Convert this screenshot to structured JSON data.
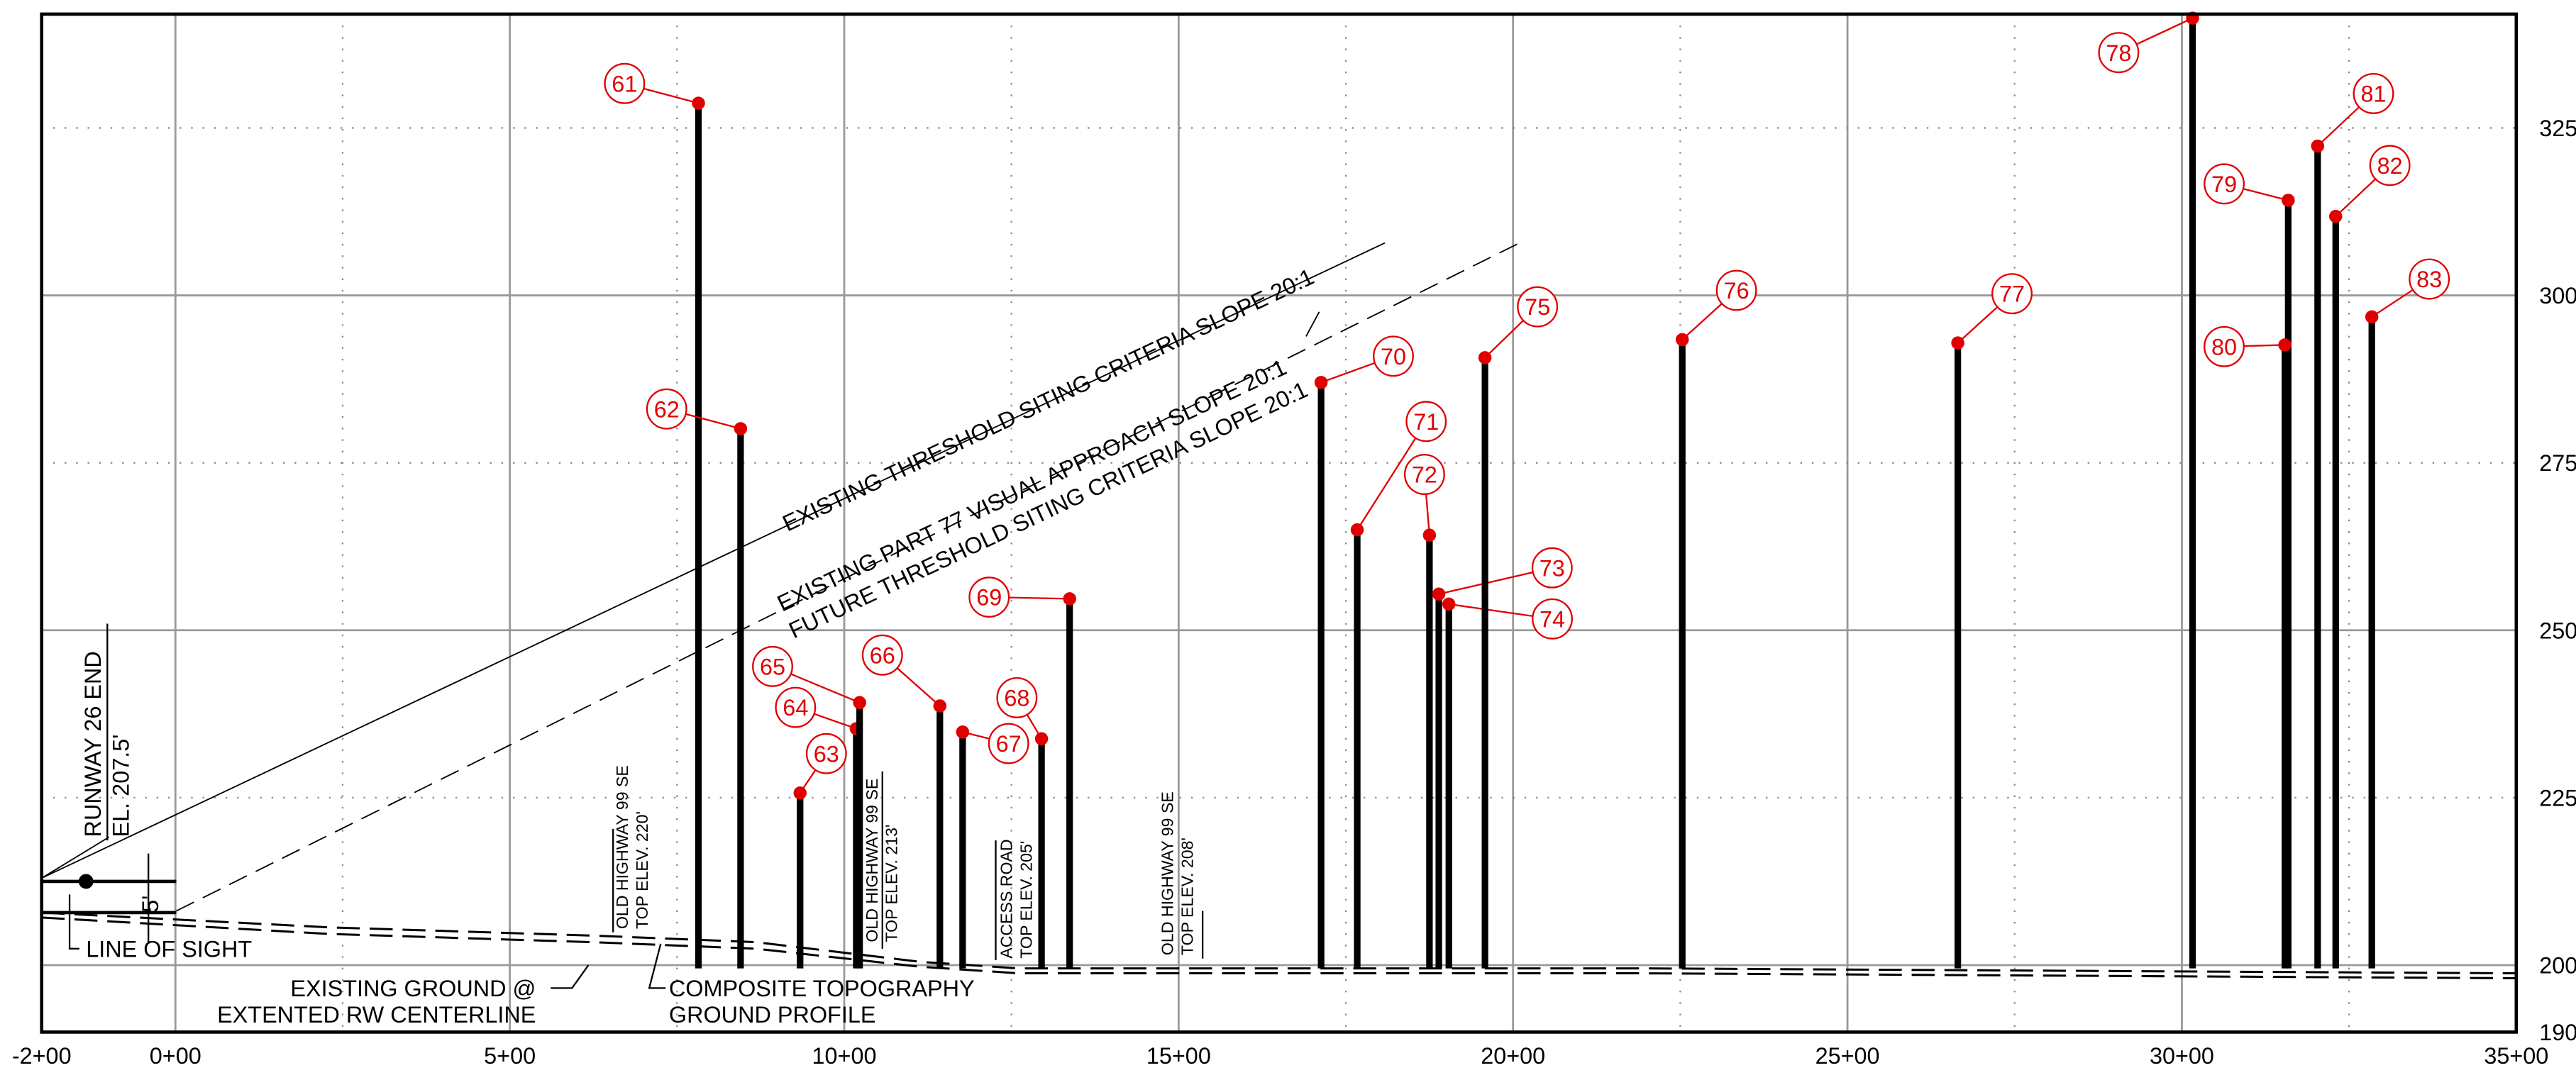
{
  "chart_data": {
    "type": "profile",
    "x": [
      782,
      845,
      934,
      1018,
      1023,
      1143,
      1177,
      1295,
      1337,
      1713,
      1767,
      1875,
      1889,
      1904,
      1958,
      2253,
      2665,
      3016,
      3159,
      3154,
      3203,
      3230,
      3284
    ],
    "values": [
      328.7,
      280.1,
      225.7,
      235.3,
      239.2,
      238.7,
      234.8,
      233.8,
      254.7,
      287.0,
      265.0,
      264.2,
      255.4,
      253.9,
      290.7,
      293.4,
      292.9,
      341.4,
      314.2,
      292.6,
      322.3,
      311.8,
      296.8
    ],
    "point_labels": [
      "61",
      "62",
      "63",
      "64",
      "65",
      "66",
      "67",
      "68",
      "69",
      "70",
      "71",
      "72",
      "73",
      "74",
      "75",
      "76",
      "77",
      "78",
      "79",
      "80",
      "81",
      "82",
      "83"
    ],
    "bar_color": "#000000",
    "label_color": "#e00000",
    "xlim": [
      -200,
      3500
    ],
    "xticks": [
      {
        "value": -200,
        "label": "-2+00"
      },
      {
        "value": 0,
        "label": "0+00"
      },
      {
        "value": 500,
        "label": "5+00"
      },
      {
        "value": 1000,
        "label": "10+00"
      },
      {
        "value": 1500,
        "label": "15+00"
      },
      {
        "value": 2000,
        "label": "20+00"
      },
      {
        "value": 2500,
        "label": "25+00"
      },
      {
        "value": 3000,
        "label": "30+00"
      },
      {
        "value": 3500,
        "label": "35+00"
      }
    ],
    "ylim": [
      190,
      342
    ],
    "yticks": [
      190,
      200,
      225,
      250,
      275,
      300,
      325
    ],
    "grid": true,
    "annotations": {
      "slope1": "EXISTING THRESHOLD SITING CRITERIA SLOPE 20:1",
      "slope2": "EXISTING PART 77 VISUAL APPROACH SLOPE 20:1",
      "slope3": "FUTURE THRESHOLD SITING CRITERIA SLOPE 20:1",
      "runway": "RUNWAY 26 END",
      "runway_el": "EL. 207.5'",
      "offset": "5'",
      "los": "LINE OF SIGHT",
      "ground1": "EXISTING GROUND @",
      "ground2": "EXTENTED RW CENTERLINE",
      "topo1": "COMPOSITE TOPOGRAPHY",
      "topo2": "GROUND PROFILE",
      "hwy1a": "OLD HIGHWAY 99 SE",
      "hwy1b": "TOP ELEV. 220'",
      "hwy2a": "OLD HIGHWAY 99 SE",
      "hwy2b": "TOP ELEV. 213'",
      "road_a": "ACCESS ROAD",
      "road_b": "TOP ELEV. 205'",
      "hwy3a": "OLD HIGHWAY 99 SE",
      "hwy3b": "TOP ELEV. 208'"
    }
  }
}
